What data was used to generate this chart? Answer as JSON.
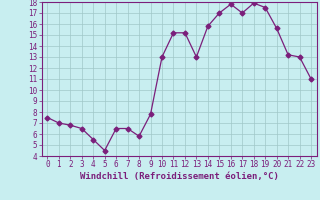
{
  "x": [
    0,
    1,
    2,
    3,
    4,
    5,
    6,
    7,
    8,
    9,
    10,
    11,
    12,
    13,
    14,
    15,
    16,
    17,
    18,
    19,
    20,
    21,
    22,
    23
  ],
  "y": [
    7.5,
    7.0,
    6.8,
    6.5,
    5.5,
    4.5,
    6.5,
    6.5,
    5.8,
    7.8,
    13.0,
    15.2,
    15.2,
    13.0,
    15.8,
    17.0,
    17.8,
    17.0,
    17.9,
    17.5,
    15.6,
    13.2,
    13.0,
    11.0
  ],
  "line_color": "#7B1F7B",
  "marker": "D",
  "marker_size": 2.5,
  "bg_color": "#c8eef0",
  "grid_color": "#a0c8c8",
  "xlabel": "Windchill (Refroidissement éolien,°C)",
  "xlim": [
    -0.5,
    23.5
  ],
  "ylim": [
    4,
    18
  ],
  "yticks": [
    4,
    5,
    6,
    7,
    8,
    9,
    10,
    11,
    12,
    13,
    14,
    15,
    16,
    17,
    18
  ],
  "xticks": [
    0,
    1,
    2,
    3,
    4,
    5,
    6,
    7,
    8,
    9,
    10,
    11,
    12,
    13,
    14,
    15,
    16,
    17,
    18,
    19,
    20,
    21,
    22,
    23
  ],
  "tick_color": "#7B1F7B",
  "axis_color": "#7B1F7B",
  "label_color": "#7B1F7B",
  "xlabel_fontsize": 6.5,
  "tick_fontsize": 5.5
}
